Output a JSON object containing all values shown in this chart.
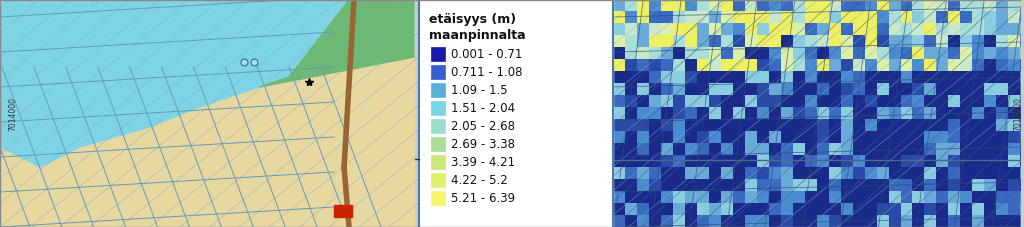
{
  "title": "",
  "legend_title_line1": "etäisyys (m)",
  "legend_title_line2": "maanpinnalta",
  "legend_items": [
    {
      "label": "0.001 - 0.71",
      "color": "#1a1aaa"
    },
    {
      "label": "0.711 - 1.08",
      "color": "#3a5fcd"
    },
    {
      "label": "1.09 - 1.5",
      "color": "#5aaedc"
    },
    {
      "label": "1.51 - 2.04",
      "color": "#7ad4e8"
    },
    {
      "label": "2.05 - 2.68",
      "color": "#9aded0"
    },
    {
      "label": "2.69 - 3.38",
      "color": "#aadc9a"
    },
    {
      "label": "3.39 - 4.21",
      "color": "#c8e87a"
    },
    {
      "label": "4.22 - 5.2",
      "color": "#e0f06a"
    },
    {
      "label": "5.21 - 6.39",
      "color": "#f5f56a"
    }
  ],
  "left_map_bg": "#e8d8a0",
  "left_map_teal": "#7ad4e8",
  "left_map_green": "#6db86d",
  "right_map_bg": "#3a7abf",
  "legend_bg": "#ffffff",
  "border_color": "#4a7aaa",
  "fig_width": 10.24,
  "fig_height": 2.27,
  "dpi": 100
}
